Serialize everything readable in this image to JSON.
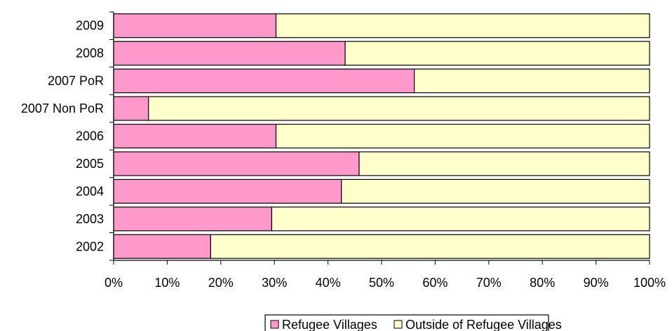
{
  "chart_data": {
    "type": "bar",
    "orientation": "horizontal",
    "stacked": "percent",
    "categories": [
      "2009",
      "2008",
      "2007 PoR",
      "2007 Non PoR",
      "2006",
      "2005",
      "2004",
      "2003",
      "2002"
    ],
    "series": [
      {
        "name": "Refugee Villages",
        "color": "#ff99cc",
        "values": [
          30.3,
          43.2,
          56.1,
          6.5,
          30.3,
          45.8,
          42.5,
          29.5,
          18.1
        ]
      },
      {
        "name": "Outside of Refugee Villages",
        "color": "#ffffcc",
        "values": [
          69.7,
          56.8,
          43.9,
          93.5,
          69.7,
          54.2,
          57.5,
          70.5,
          81.9
        ]
      }
    ],
    "x_ticks": [
      "0%",
      "10%",
      "20%",
      "30%",
      "40%",
      "50%",
      "60%",
      "70%",
      "80%",
      "90%",
      "100%"
    ],
    "xlim": [
      0,
      100
    ],
    "title": "",
    "xlabel": "",
    "ylabel": "",
    "grid": false,
    "legend_position": "bottom"
  }
}
